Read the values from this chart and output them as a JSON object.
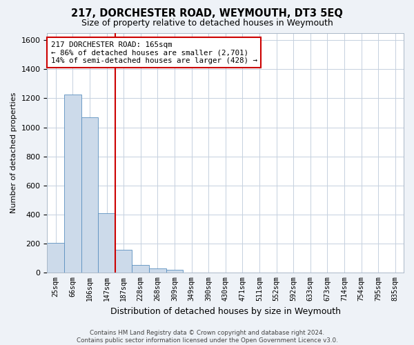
{
  "title": "217, DORCHESTER ROAD, WEYMOUTH, DT3 5EQ",
  "subtitle": "Size of property relative to detached houses in Weymouth",
  "xlabel": "Distribution of detached houses by size in Weymouth",
  "ylabel": "Number of detached properties",
  "bar_labels": [
    "25sqm",
    "66sqm",
    "106sqm",
    "147sqm",
    "187sqm",
    "228sqm",
    "268sqm",
    "309sqm",
    "349sqm",
    "390sqm",
    "430sqm",
    "471sqm",
    "511sqm",
    "552sqm",
    "592sqm",
    "633sqm",
    "673sqm",
    "714sqm",
    "754sqm",
    "795sqm",
    "835sqm"
  ],
  "bar_values": [
    205,
    1225,
    1070,
    410,
    160,
    55,
    30,
    20,
    0,
    0,
    0,
    0,
    0,
    0,
    0,
    0,
    0,
    0,
    0,
    0,
    0
  ],
  "bar_color": "#ccdaea",
  "bar_edgecolor": "#5a8fbf",
  "vline_color": "#cc0000",
  "vline_pos": 3.5,
  "annotation_line1": "217 DORCHESTER ROAD: 165sqm",
  "annotation_line2": "← 86% of detached houses are smaller (2,701)",
  "annotation_line3": "14% of semi-detached houses are larger (428) →",
  "annotation_box_edgecolor": "#cc0000",
  "ylim": [
    0,
    1650
  ],
  "yticks": [
    0,
    200,
    400,
    600,
    800,
    1000,
    1200,
    1400,
    1600
  ],
  "footer": "Contains HM Land Registry data © Crown copyright and database right 2024.\nContains public sector information licensed under the Open Government Licence v3.0.",
  "bg_color": "#eef2f7",
  "plot_bg_color": "#ffffff",
  "grid_color": "#c5d0de"
}
